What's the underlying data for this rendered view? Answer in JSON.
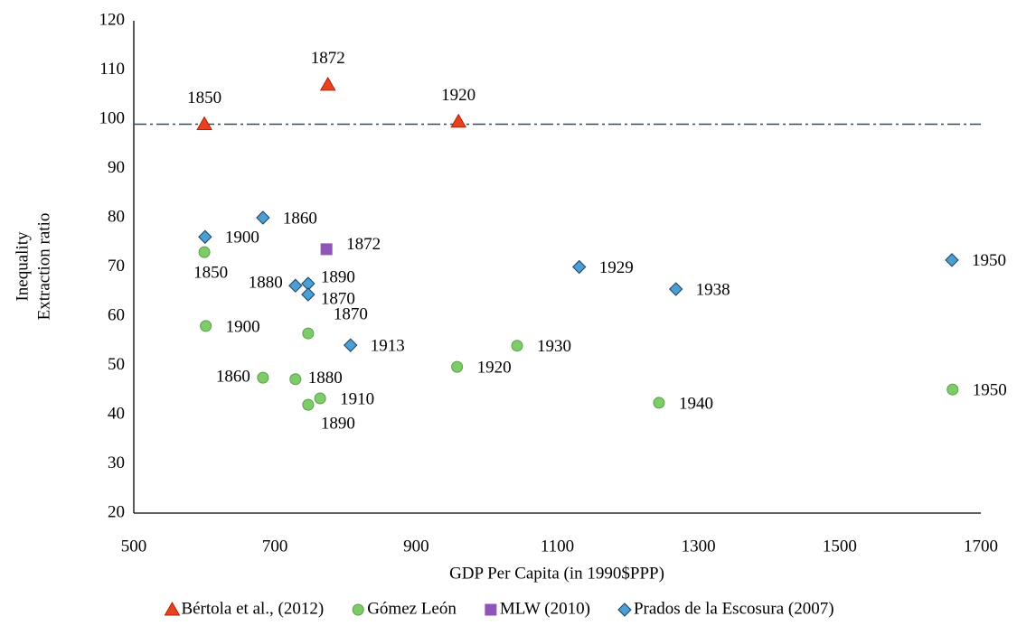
{
  "chart_data": {
    "type": "scatter",
    "xlabel": "GDP Per Capita (in 1990$PPP)",
    "ylabel": [
      "Inequality",
      "Extraction ratio"
    ],
    "xlim": [
      500,
      1700
    ],
    "xticks": [
      500,
      700,
      900,
      1100,
      1300,
      1500,
      1700
    ],
    "ylim": [
      20,
      120
    ],
    "yticks": [
      20,
      30,
      40,
      50,
      60,
      70,
      80,
      90,
      100,
      110,
      120
    ],
    "grid": false,
    "hline": {
      "value": 99,
      "color": "#2f4a6b"
    },
    "legend": "bottom",
    "series": [
      {
        "name": "Bértola et al., (2012)",
        "marker": "triangle",
        "color": "#e8411d",
        "x": [
          600,
          775,
          960
        ],
        "values": [
          99,
          107,
          99.5
        ],
        "point_labels": [
          "1850",
          "1872",
          "1920"
        ]
      },
      {
        "name": "Gómez León",
        "marker": "circle",
        "color": "#7ecb6a",
        "x": [
          600,
          602,
          683,
          729,
          747,
          747,
          764,
          958,
          1043,
          1244,
          1660
        ],
        "values": [
          73,
          58,
          47.5,
          47.2,
          56.5,
          42,
          43.3,
          49.7,
          54,
          42.4,
          45.1
        ],
        "point_labels": [
          "1850",
          "1900",
          "1860",
          "1880",
          "1870",
          "1890",
          "1910",
          "1920",
          "1930",
          "1940",
          "1950"
        ]
      },
      {
        "name": "MLW (2010)",
        "marker": "square",
        "color": "#8e56b8",
        "x": [
          773
        ],
        "values": [
          73.6
        ],
        "point_labels": [
          "1872"
        ]
      },
      {
        "name": "Prados de la Escosura (2007)",
        "marker": "diamond",
        "color": "#4a9fd5",
        "x": [
          601,
          683,
          729,
          747,
          747,
          807,
          1131,
          1268,
          1659
        ],
        "values": [
          76.1,
          80,
          66.2,
          66.6,
          64.4,
          54.1,
          70,
          65.5,
          71.4
        ],
        "point_labels": [
          "1900",
          "1860",
          "1880",
          "1890",
          "1870",
          "1913",
          "1929",
          "1938",
          "1950"
        ]
      }
    ]
  }
}
